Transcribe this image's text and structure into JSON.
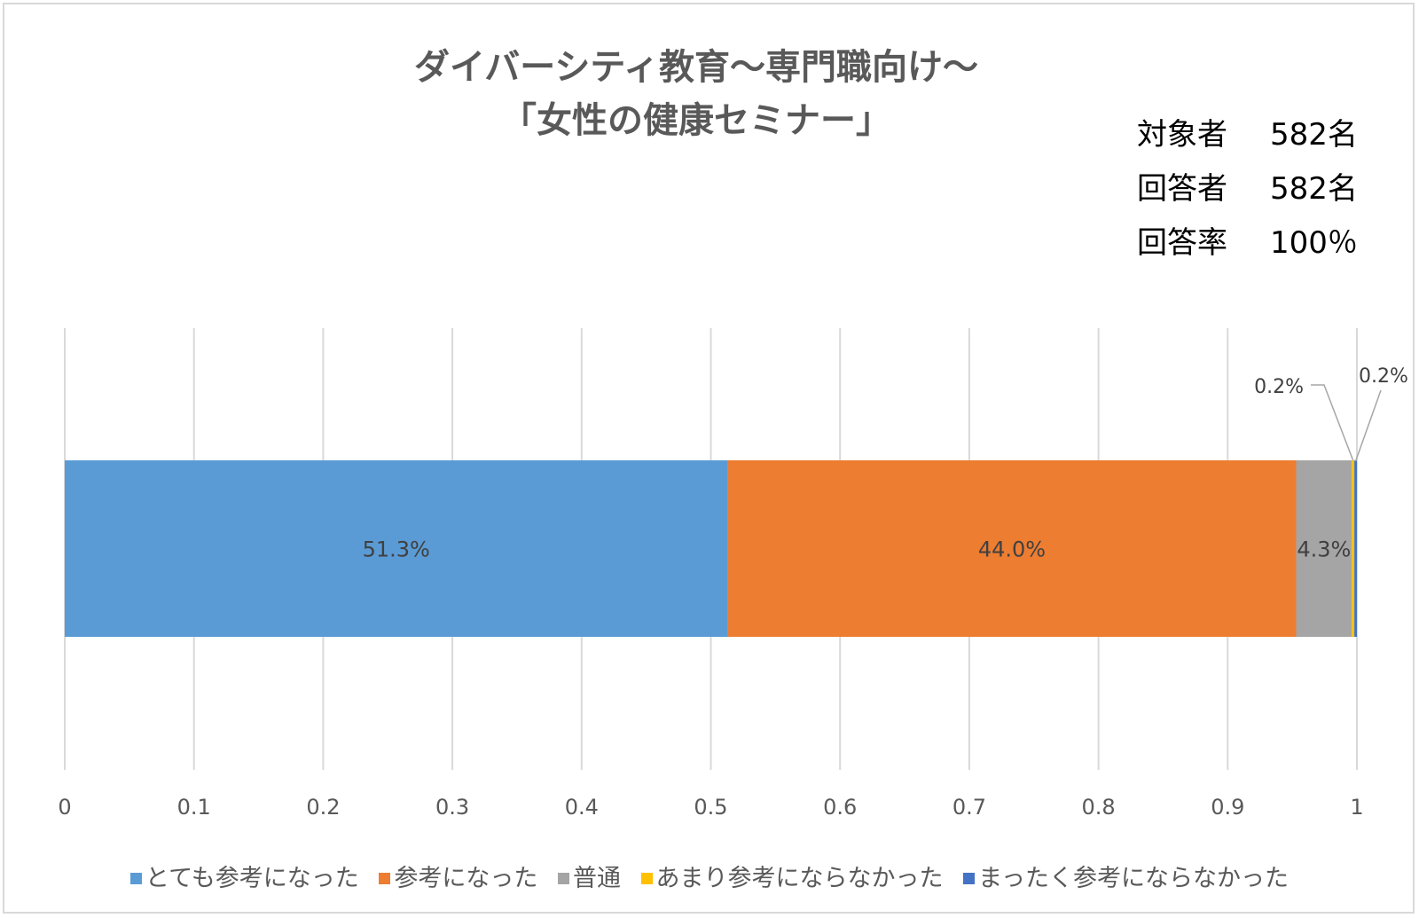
{
  "chart_data": {
    "type": "bar",
    "orientation": "horizontal",
    "stacked": true,
    "title_line1": "ダイバーシティ教育～専門職向け～",
    "title_line2": "「女性の健康セミナー」",
    "xlim": [
      0,
      1
    ],
    "x_ticks": [
      "0",
      "0.1",
      "0.2",
      "0.3",
      "0.4",
      "0.5",
      "0.6",
      "0.7",
      "0.8",
      "0.9",
      "1"
    ],
    "grid": true,
    "legend_position": "bottom",
    "series": [
      {
        "name": "とても参考になった",
        "value": 0.513,
        "label": "51.3%",
        "color": "#5b9bd5"
      },
      {
        "name": "参考になった",
        "value": 0.44,
        "label": "44.0%",
        "color": "#ed7d31"
      },
      {
        "name": "普通",
        "value": 0.043,
        "label": "4.3%",
        "color": "#a5a5a5"
      },
      {
        "name": "あまり参考にならなかった",
        "value": 0.002,
        "label": "0.2%",
        "color": "#ffc000"
      },
      {
        "name": "まったく参考にならなかった",
        "value": 0.002,
        "label": "0.2%",
        "color": "#4472c4"
      }
    ]
  },
  "stats": [
    {
      "key": "対象者",
      "value": "582名"
    },
    {
      "key": "回答者",
      "value": "582名"
    },
    {
      "key": "回答率",
      "value": "100％"
    }
  ]
}
